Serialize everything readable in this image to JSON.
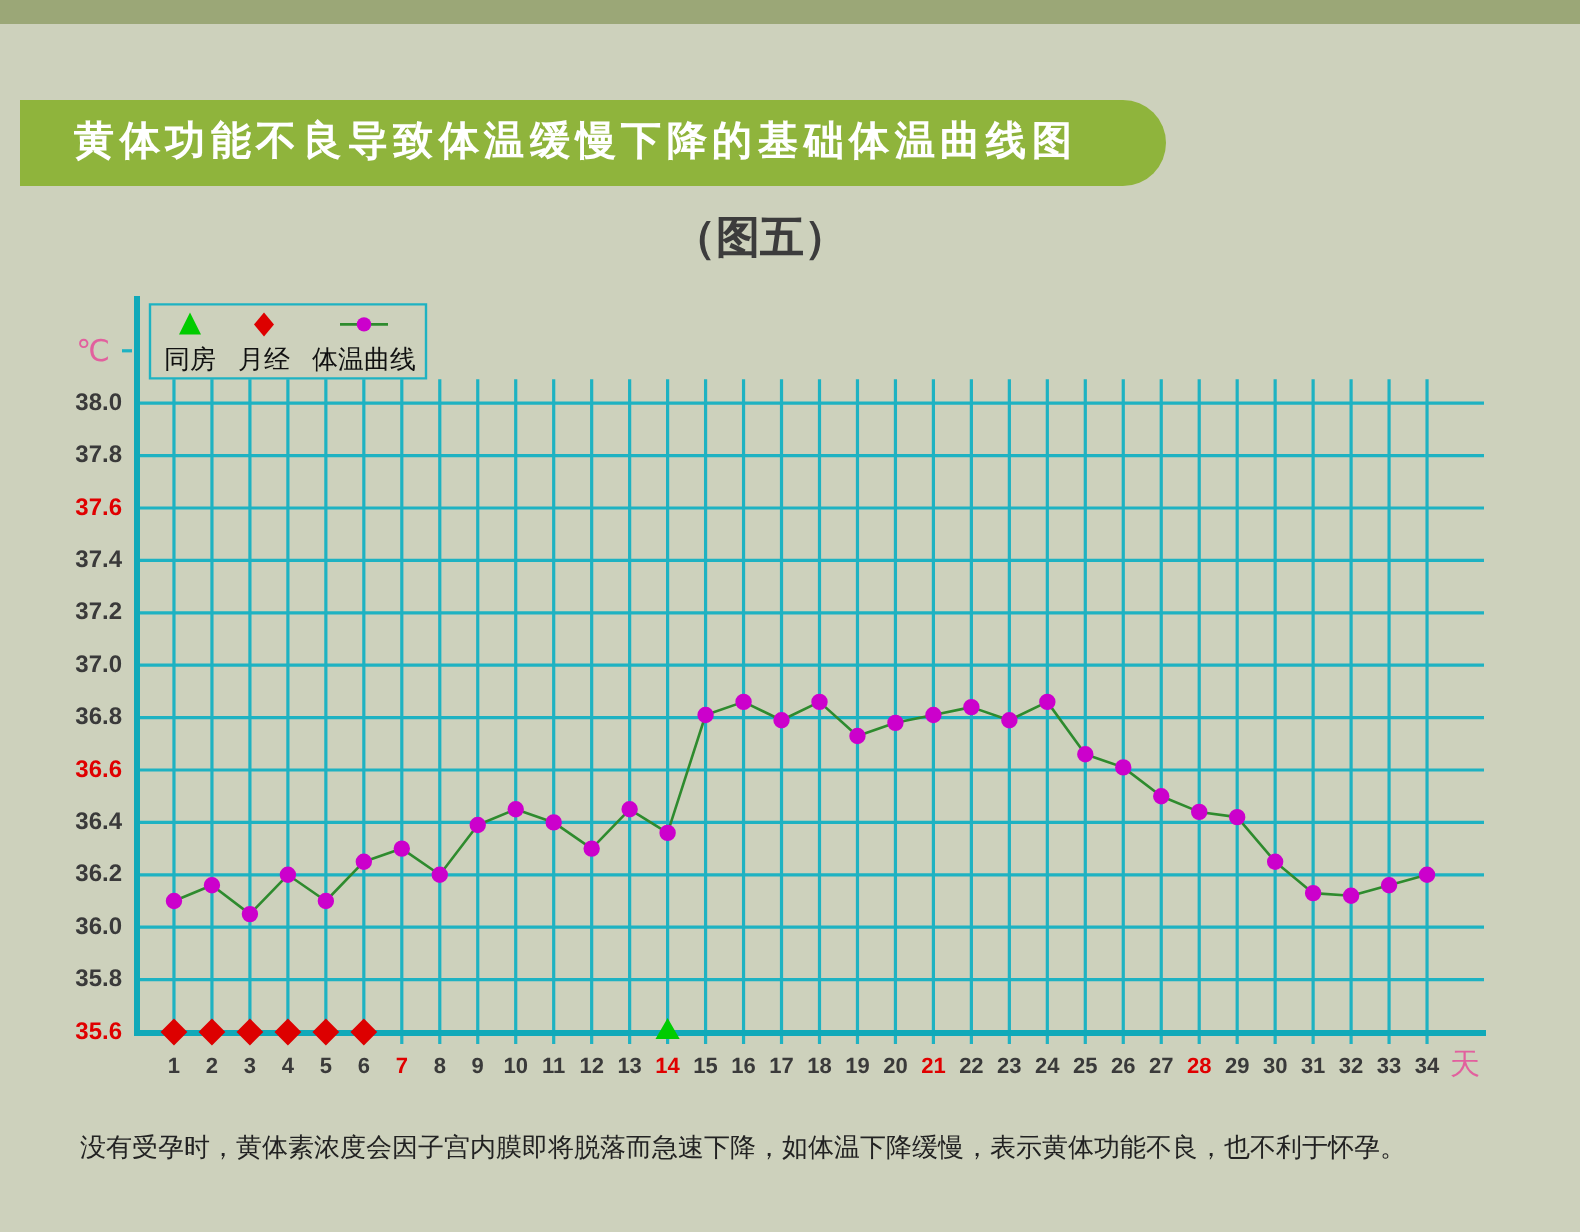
{
  "chart_data": {
    "type": "line",
    "title": "黄体功能不良导致体温缓慢下降的基础体温曲线图",
    "subtitle": "（图五）",
    "xlabel": "天",
    "ylabel": "℃",
    "annotations": [
      "没有受孕时，黄体素浓度会因子宫内膜即将脱落而急速下降，如体温下降缓慢，表示黄体功能不良，也不利于怀孕。"
    ],
    "x": [
      1,
      2,
      3,
      4,
      5,
      6,
      7,
      8,
      9,
      10,
      11,
      12,
      13,
      14,
      15,
      16,
      17,
      18,
      19,
      20,
      21,
      22,
      23,
      24,
      25,
      26,
      27,
      28,
      29,
      30,
      31,
      32,
      33,
      34
    ],
    "series": [
      {
        "name": "同房",
        "type": "scatter",
        "marker": "triangle",
        "color": "#00cc00",
        "x": [
          14
        ],
        "values": [
          35.6
        ]
      },
      {
        "name": "月经",
        "type": "scatter",
        "marker": "diamond",
        "color": "#dd0000",
        "x": [
          1,
          2,
          3,
          4,
          5,
          6
        ],
        "values": [
          35.6,
          35.6,
          35.6,
          35.6,
          35.6,
          35.6
        ]
      },
      {
        "name": "体温曲线",
        "type": "line",
        "marker": "circle",
        "color": "#2e8b2e",
        "colors": [
          "#cc00cc",
          "#cc00cc",
          "#cc00cc",
          "#cc00cc",
          "#cc00cc",
          "#cc00cc",
          "#cc00cc",
          "#cc00cc",
          "#cc00cc",
          "#cc00cc",
          "#cc00cc",
          "#cc00cc",
          "#cc00cc",
          "#cc00cc",
          "#cc00cc",
          "#cc00cc",
          "#cc00cc",
          "#cc00cc",
          "#cc00cc",
          "#cc00cc",
          "#cc00cc",
          "#cc00cc",
          "#cc00cc",
          "#cc00cc",
          "#cc00cc",
          "#cc00cc",
          "#cc00cc",
          "#cc00cc",
          "#cc00cc",
          "#cc00cc",
          "#cc00cc",
          "#cc00cc",
          "#cc00cc",
          "#cc00cc"
        ],
        "values": [
          36.1,
          36.16,
          36.05,
          36.2,
          36.1,
          36.25,
          36.3,
          36.2,
          36.39,
          36.45,
          36.4,
          36.3,
          36.45,
          36.36,
          36.81,
          36.86,
          36.79,
          36.86,
          36.73,
          36.78,
          36.81,
          36.84,
          36.79,
          36.86,
          36.66,
          36.61,
          36.5,
          36.44,
          36.42,
          36.25,
          36.13,
          36.12,
          36.16,
          36.2
        ]
      }
    ],
    "xlim": [
      0,
      35.5
    ],
    "ylim": [
      35.6,
      38.4
    ],
    "xticks": [
      1,
      2,
      3,
      4,
      5,
      6,
      7,
      8,
      9,
      10,
      11,
      12,
      13,
      14,
      15,
      16,
      17,
      18,
      19,
      20,
      21,
      22,
      23,
      24,
      25,
      26,
      27,
      28,
      29,
      30,
      31,
      32,
      33,
      34
    ],
    "yticks": [
      35.6,
      35.8,
      {
        "value": 36,
        "label": "36.0"
      },
      36.2,
      36.4,
      36.6,
      36.8,
      {
        "value": 37,
        "label": "37.0"
      },
      37.2,
      37.4,
      37.6,
      37.8,
      {
        "value": 38,
        "label": "38.0"
      },
      {
        "value": 38.2,
        "label": null
      }
    ],
    "grid": true,
    "legend": "top left"
  }
}
